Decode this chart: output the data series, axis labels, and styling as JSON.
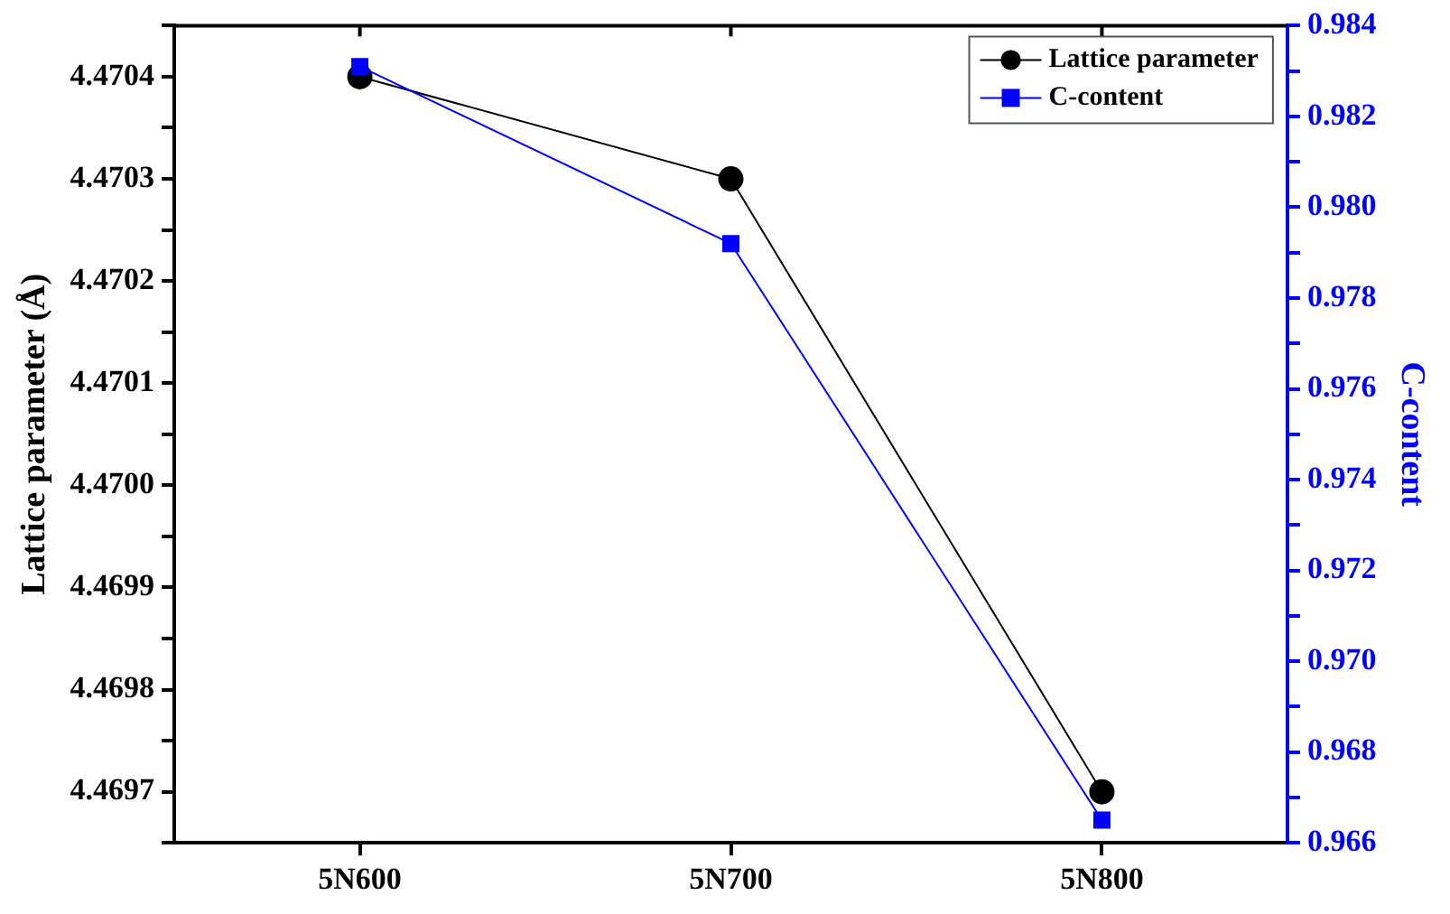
{
  "chart_data": {
    "type": "line",
    "xlabel": null,
    "ylabel": "Lattice parameter (Å)",
    "y2label": "C-content",
    "categories": [
      "5N600",
      "5N700",
      "5N800"
    ],
    "series": [
      {
        "name": "Lattice parameter",
        "color": "#000000",
        "marker": "circle",
        "values": [
          4.4704,
          4.4703,
          4.4697
        ]
      },
      {
        "name": "C-content",
        "color": "#0000ff",
        "marker": "square",
        "axis": "y2",
        "values": [
          0.9831,
          0.9792,
          0.9665
        ]
      }
    ],
    "ylim": [
      4.46965,
      4.47045
    ],
    "yticks": [
      {
        "value": 4.46965,
        "label": null
      },
      4.4697,
      {
        "value": 4.46975,
        "label": null
      },
      4.4698,
      {
        "value": 4.46985,
        "label": null
      },
      4.4699,
      {
        "value": 4.46995,
        "label": null
      },
      {
        "value": 4.47,
        "label": "4.4700"
      },
      {
        "value": 4.47005,
        "label": null
      },
      4.4701,
      {
        "value": 4.47015,
        "label": null
      },
      4.4702,
      {
        "value": 4.47025,
        "label": null
      },
      4.4703,
      {
        "value": 4.47035,
        "label": null
      },
      4.4704,
      {
        "value": 4.47045,
        "label": null
      }
    ],
    "y2lim": [
      0.966,
      0.984
    ],
    "y2ticks": [
      0.966,
      {
        "value": 0.967,
        "label": null
      },
      0.968,
      {
        "value": 0.969,
        "label": null
      },
      {
        "value": 0.97,
        "label": "0.970"
      },
      {
        "value": 0.971,
        "label": null
      },
      0.972,
      {
        "value": 0.973,
        "label": null
      },
      0.974,
      {
        "value": 0.975,
        "label": null
      },
      0.976,
      {
        "value": 0.977,
        "label": null
      },
      0.978,
      {
        "value": 0.979,
        "label": null
      },
      {
        "value": 0.98,
        "label": "0.980"
      },
      {
        "value": 0.981,
        "label": null
      },
      0.982,
      {
        "value": 0.983,
        "label": null
      },
      0.984
    ],
    "grid": false,
    "legend": "top right"
  }
}
